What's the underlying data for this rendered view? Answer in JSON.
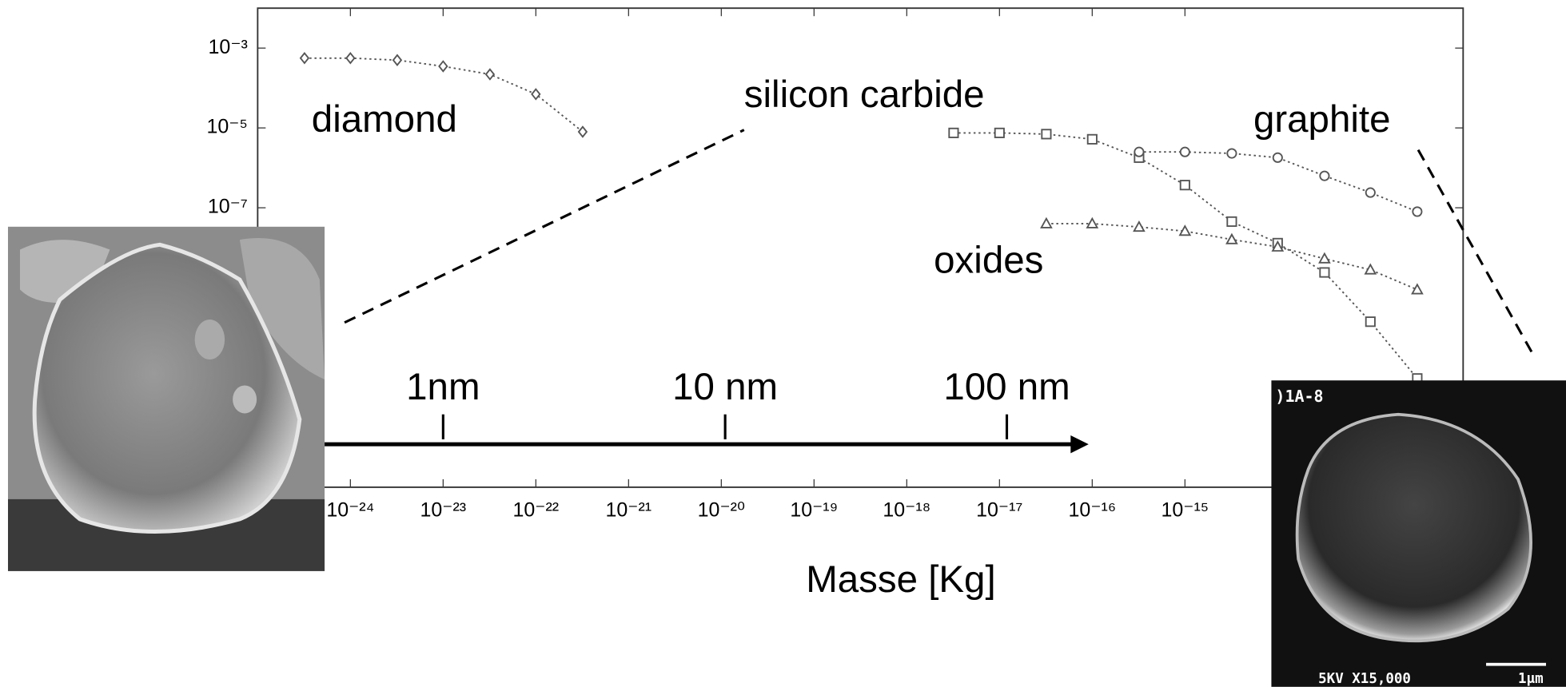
{
  "chart_data": {
    "type": "line",
    "log_x": true,
    "log_y": true,
    "grid": false,
    "xlabel": "Masse [Kg]",
    "xlim": [
      1e-25,
      1e-12
    ],
    "ylim": [
      1e-14,
      0.01
    ],
    "xticks": [
      {
        "value": 1e-24,
        "label": "10⁻²⁴"
      },
      {
        "value": 1e-23,
        "label": "10⁻²³"
      },
      {
        "value": 1e-22,
        "label": "10⁻²²"
      },
      {
        "value": 1e-21,
        "label": "10⁻²¹"
      },
      {
        "value": 1e-20,
        "label": "10⁻²⁰"
      },
      {
        "value": 1e-19,
        "label": "10⁻¹⁹"
      },
      {
        "value": 1e-18,
        "label": "10⁻¹⁸"
      },
      {
        "value": 1e-17,
        "label": "10⁻¹⁷"
      },
      {
        "value": 1e-16,
        "label": "10⁻¹⁶"
      },
      {
        "value": 1e-15,
        "label": "10⁻¹⁵"
      }
    ],
    "yticks": [
      {
        "value": 0.001,
        "label": "10⁻³"
      },
      {
        "value": 1e-05,
        "label": "10⁻⁵"
      },
      {
        "value": 1e-07,
        "label": "10⁻⁷"
      }
    ],
    "series": [
      {
        "name": "diamond",
        "color": "#555555",
        "marker": "diamond",
        "x": [
          3.2e-25,
          1e-24,
          3.2e-24,
          1e-23,
          3.2e-23,
          1e-22,
          3.2e-22
        ],
        "values": [
          0.00056,
          0.00056,
          0.0005,
          0.00035,
          0.00022,
          7e-05,
          8e-06
        ]
      },
      {
        "name": "silicon carbide",
        "color": "#555555",
        "marker": "square",
        "x": [
          3.2e-18,
          1e-17,
          3.2e-17,
          1e-16,
          3.2e-16,
          1e-15,
          3.2e-15,
          1e-14,
          3.2e-14,
          1e-13,
          3.2e-13
        ],
        "values": [
          7.5e-06,
          7.5e-06,
          7e-06,
          5.2e-06,
          1.8e-06,
          3.7e-07,
          4.5e-08,
          1.3e-08,
          2.4e-09,
          1.4e-10,
          5.3e-12
        ]
      },
      {
        "name": "graphite",
        "color": "#555555",
        "marker": "circle",
        "x": [
          3.2e-16,
          1e-15,
          3.2e-15,
          1e-14,
          3.2e-14,
          1e-13,
          3.2e-13
        ],
        "values": [
          2.5e-06,
          2.5e-06,
          2.3e-06,
          1.8e-06,
          6.3e-07,
          2.4e-07,
          8e-08
        ]
      },
      {
        "name": "oxides",
        "color": "#555555",
        "marker": "triangle",
        "x": [
          3.2e-17,
          1e-16,
          3.2e-16,
          1e-15,
          3.2e-15,
          1e-14,
          3.2e-14,
          1e-13,
          3.2e-13
        ],
        "values": [
          4e-08,
          4e-08,
          3.3e-08,
          2.6e-08,
          1.6e-08,
          1.05e-08,
          5.3e-09,
          2.8e-09,
          8.9e-10
        ]
      }
    ],
    "size_marks": [
      {
        "label": "1nm",
        "mass": 1e-23
      },
      {
        "label": "10 nm",
        "mass": 1.1e-20
      },
      {
        "label": "100 nm",
        "mass": 1.2e-17
      }
    ],
    "photo_captions": [
      ")1A-8",
      "5KV  X15,000",
      "1μm"
    ]
  }
}
